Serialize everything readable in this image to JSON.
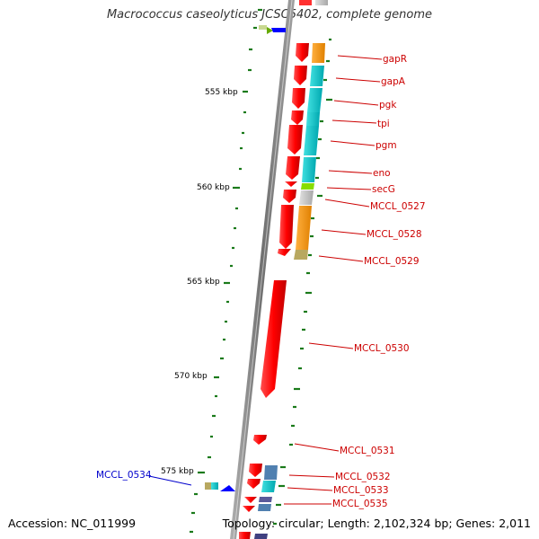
{
  "title": "Macrococcus caseolyticus JCSC5402, complete genome",
  "footer": {
    "accession": "Accession: NC_011999",
    "summary": "Topology: circular; Length: 2,102,324 bp; Genes: 2,011"
  },
  "scale_labels": [
    "555 kbp",
    "560 kbp",
    "565 kbp",
    "570 kbp",
    "575 kbp"
  ],
  "genes": [
    {
      "name": "gapR",
      "color": "#cc0000"
    },
    {
      "name": "gapA",
      "color": "#cc0000"
    },
    {
      "name": "pgk",
      "color": "#cc0000"
    },
    {
      "name": "tpi",
      "color": "#cc0000"
    },
    {
      "name": "pgm",
      "color": "#cc0000"
    },
    {
      "name": "eno",
      "color": "#cc0000"
    },
    {
      "name": "secG",
      "color": "#cc0000"
    },
    {
      "name": "MCCL_0527",
      "color": "#cc0000"
    },
    {
      "name": "MCCL_0528",
      "color": "#cc0000"
    },
    {
      "name": "MCCL_0529",
      "color": "#cc0000"
    },
    {
      "name": "MCCL_0530",
      "color": "#cc0000"
    },
    {
      "name": "MCCL_0531",
      "color": "#cc0000"
    },
    {
      "name": "MCCL_0532",
      "color": "#cc0000"
    },
    {
      "name": "MCCL_0533",
      "color": "#cc0000"
    },
    {
      "name": "MCCL_0535",
      "color": "#cc0000"
    },
    {
      "name": "MCCL_0534",
      "color": "#0000cc"
    }
  ],
  "colors": {
    "forward_strand": "#ff0000",
    "reverse_strand": "#0000ff",
    "backbone": "#808080",
    "tick": "#1a7a1a",
    "cog_orange": "#ff9900",
    "cog_cyan": "#00cccc",
    "cog_gray": "#c0c0c0",
    "cog_olive": "#b8a860",
    "cog_green": "#88dd00",
    "cog_steelblue": "#5080b0",
    "cog_navy": "#404080"
  }
}
